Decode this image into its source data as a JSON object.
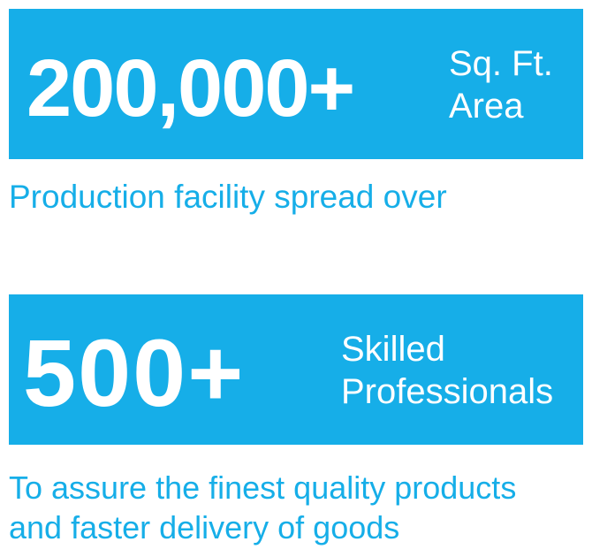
{
  "stats": [
    {
      "number": "200,000+",
      "unit_line1": "Sq. Ft.",
      "unit_line2": "Area",
      "caption_line1": "Production facility spread over"
    },
    {
      "number": "500+",
      "unit_line1": "Skilled",
      "unit_line2": "Professionals",
      "caption_line1": "To assure the finest quality products",
      "caption_line2": "and faster delivery of goods"
    }
  ],
  "colors": {
    "accent": "#16aee8",
    "text_on_accent": "#ffffff",
    "background": "#ffffff"
  }
}
